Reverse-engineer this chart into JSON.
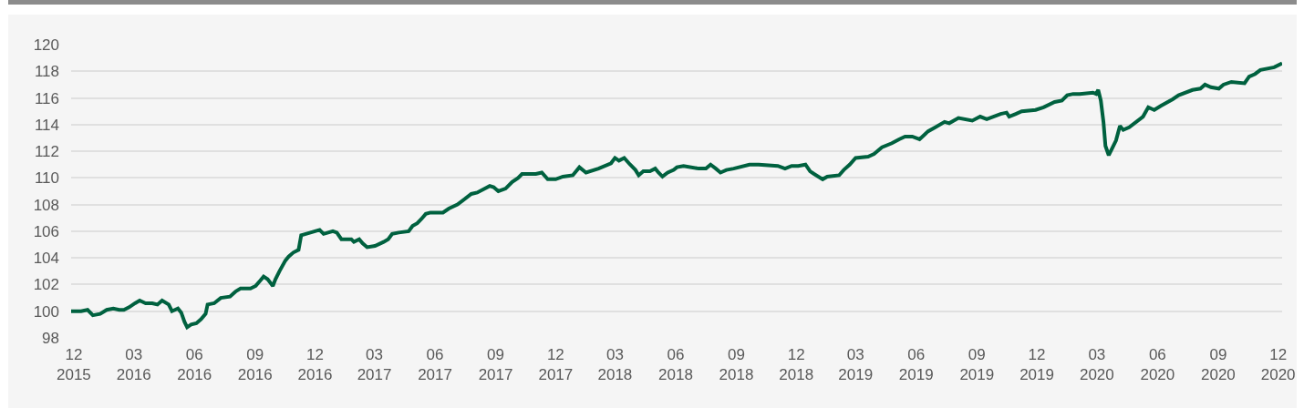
{
  "chart_data": {
    "type": "line",
    "x": [
      "2015-11-27",
      "2015-12-12",
      "2015-12-22",
      "2015-12-30",
      "2016-01-10",
      "2016-01-20",
      "2016-01-30",
      "2016-02-08",
      "2016-02-15",
      "2016-02-23",
      "2016-03-03",
      "2016-03-10",
      "2016-03-19",
      "2016-03-29",
      "2016-04-06",
      "2016-04-13",
      "2016-04-23",
      "2016-04-28",
      "2016-05-07",
      "2016-05-12",
      "2016-05-17",
      "2016-05-21",
      "2016-05-27",
      "2016-06-04",
      "2016-06-11",
      "2016-06-18",
      "2016-06-21",
      "2016-07-01",
      "2016-07-11",
      "2016-07-25",
      "2016-08-03",
      "2016-08-10",
      "2016-08-25",
      "2016-09-02",
      "2016-09-09",
      "2016-09-14",
      "2016-09-20",
      "2016-09-28",
      "2016-10-02",
      "2016-10-08",
      "2016-10-17",
      "2016-10-22",
      "2016-10-29",
      "2016-11-06",
      "2016-11-10",
      "2016-11-17",
      "2016-12-01",
      "2016-12-08",
      "2016-12-14",
      "2016-12-28",
      "2017-01-03",
      "2017-01-10",
      "2017-01-25",
      "2017-01-29",
      "2017-02-06",
      "2017-02-11",
      "2017-02-18",
      "2017-03-02",
      "2017-03-15",
      "2017-03-22",
      "2017-03-28",
      "2017-04-07",
      "2017-04-22",
      "2017-04-28",
      "2017-05-05",
      "2017-05-11",
      "2017-05-18",
      "2017-05-25",
      "2017-06-01",
      "2017-06-13",
      "2017-06-22",
      "2017-07-05",
      "2017-07-26",
      "2017-08-04",
      "2017-08-23",
      "2017-08-29",
      "2017-09-05",
      "2017-09-16",
      "2017-09-26",
      "2017-10-05",
      "2017-10-11",
      "2017-11-01",
      "2017-11-10",
      "2017-11-19",
      "2017-12-01",
      "2017-12-12",
      "2017-12-27",
      "2018-01-06",
      "2018-01-16",
      "2018-02-04",
      "2018-02-23",
      "2018-03-01",
      "2018-03-07",
      "2018-03-15",
      "2018-03-24",
      "2018-04-01",
      "2018-04-06",
      "2018-04-13",
      "2018-04-23",
      "2018-05-01",
      "2018-05-06",
      "2018-05-12",
      "2018-05-20",
      "2018-05-29",
      "2018-06-03",
      "2018-06-13",
      "2018-07-06",
      "2018-07-17",
      "2018-07-24",
      "2018-08-01",
      "2018-08-08",
      "2018-08-17",
      "2018-08-28",
      "2018-09-21",
      "2018-10-05",
      "2018-11-03",
      "2018-11-14",
      "2018-11-24",
      "2018-12-04",
      "2018-12-15",
      "2018-12-22",
      "2018-12-28",
      "2019-01-10",
      "2019-01-17",
      "2019-02-04",
      "2019-02-11",
      "2019-02-20",
      "2019-03-01",
      "2019-03-20",
      "2019-03-29",
      "2019-04-10",
      "2019-04-25",
      "2019-05-06",
      "2019-05-15",
      "2019-05-26",
      "2019-06-06",
      "2019-06-19",
      "2019-06-30",
      "2019-07-14",
      "2019-07-21",
      "2019-08-04",
      "2019-08-25",
      "2019-09-06",
      "2019-09-16",
      "2019-10-07",
      "2019-10-16",
      "2019-10-20",
      "2019-10-30",
      "2019-11-08",
      "2019-11-29",
      "2019-12-11",
      "2019-12-28",
      "2020-01-08",
      "2020-01-16",
      "2020-01-25",
      "2020-02-04",
      "2020-02-24",
      "2020-02-29",
      "2020-03-03",
      "2020-03-07",
      "2020-03-11",
      "2020-03-14",
      "2020-03-19",
      "2020-03-23",
      "2020-03-30",
      "2020-04-05",
      "2020-04-10",
      "2020-04-19",
      "2020-05-10",
      "2020-05-18",
      "2020-05-27",
      "2020-06-06",
      "2020-06-24",
      "2020-07-03",
      "2020-07-24",
      "2020-08-05",
      "2020-08-12",
      "2020-08-21",
      "2020-09-02",
      "2020-09-09",
      "2020-09-21",
      "2020-10-11",
      "2020-10-18",
      "2020-10-27",
      "2020-11-04",
      "2020-11-25",
      "2020-12-07"
    ],
    "series": [
      {
        "color": "#00613f",
        "values": [
          100.0,
          100.0,
          100.1,
          99.7,
          99.8,
          100.1,
          100.2,
          100.1,
          100.1,
          100.3,
          100.6,
          100.8,
          100.6,
          100.6,
          100.5,
          100.8,
          100.5,
          100.0,
          100.2,
          99.9,
          99.2,
          98.8,
          99.0,
          99.1,
          99.4,
          99.8,
          100.5,
          100.6,
          101.0,
          101.1,
          101.5,
          101.7,
          101.7,
          101.9,
          102.3,
          102.6,
          102.4,
          101.9,
          102.4,
          103.0,
          103.8,
          104.1,
          104.4,
          104.6,
          105.7,
          105.8,
          106.0,
          106.1,
          105.8,
          106.0,
          105.9,
          105.4,
          105.4,
          105.2,
          105.4,
          105.1,
          104.8,
          104.9,
          105.2,
          105.4,
          105.8,
          105.9,
          106.0,
          106.4,
          106.6,
          106.9,
          107.3,
          107.4,
          107.4,
          107.4,
          107.7,
          108.0,
          108.8,
          108.9,
          109.4,
          109.3,
          109.0,
          109.2,
          109.7,
          110.0,
          110.3,
          110.3,
          110.4,
          109.9,
          109.9,
          110.1,
          110.2,
          110.8,
          110.4,
          110.7,
          111.1,
          111.5,
          111.3,
          111.5,
          111.0,
          110.6,
          110.2,
          110.5,
          110.5,
          110.7,
          110.4,
          110.1,
          110.4,
          110.6,
          110.8,
          110.9,
          110.7,
          110.7,
          111.0,
          110.7,
          110.4,
          110.6,
          110.7,
          111.0,
          111.0,
          110.9,
          110.7,
          110.9,
          110.9,
          111.0,
          110.5,
          110.3,
          109.9,
          110.1,
          110.2,
          110.6,
          111.0,
          111.5,
          111.6,
          111.8,
          112.3,
          112.6,
          112.9,
          113.1,
          113.1,
          112.9,
          113.5,
          113.8,
          114.2,
          114.1,
          114.5,
          114.3,
          114.6,
          114.4,
          114.8,
          114.9,
          114.6,
          114.8,
          115.0,
          115.1,
          115.3,
          115.7,
          115.8,
          116.2,
          116.3,
          116.3,
          116.4,
          116.3,
          116.6,
          115.8,
          114.2,
          112.4,
          111.7,
          112.1,
          112.8,
          113.9,
          113.6,
          113.8,
          114.6,
          115.3,
          115.1,
          115.4,
          115.9,
          116.2,
          116.6,
          116.7,
          117.0,
          116.8,
          116.7,
          117.0,
          117.2,
          117.1,
          117.6,
          117.8,
          118.1,
          118.3,
          118.6
        ]
      }
    ],
    "xlim": [
      "2015-11-27",
      "2020-12-07"
    ],
    "xticks": [
      {
        "value": "2015-12-01",
        "label": "12\n2015"
      },
      {
        "value": "2016-03-01",
        "label": "03\n2016"
      },
      {
        "value": "2016-06-01",
        "label": "06\n2016"
      },
      {
        "value": "2016-09-01",
        "label": "09\n2016"
      },
      {
        "value": "2016-12-01",
        "label": "12\n2016"
      },
      {
        "value": "2017-03-01",
        "label": "03\n2017"
      },
      {
        "value": "2017-06-01",
        "label": "06\n2017"
      },
      {
        "value": "2017-09-01",
        "label": "09\n2017"
      },
      {
        "value": "2017-12-01",
        "label": "12\n2017"
      },
      {
        "value": "2018-03-01",
        "label": "03\n2018"
      },
      {
        "value": "2018-06-01",
        "label": "06\n2018"
      },
      {
        "value": "2018-09-01",
        "label": "09\n2018"
      },
      {
        "value": "2018-12-01",
        "label": "12\n2018"
      },
      {
        "value": "2019-03-01",
        "label": "03\n2019"
      },
      {
        "value": "2019-06-01",
        "label": "06\n2019"
      },
      {
        "value": "2019-09-01",
        "label": "09\n2019"
      },
      {
        "value": "2019-12-01",
        "label": "12\n2019"
      },
      {
        "value": "2020-03-01",
        "label": "03\n2020"
      },
      {
        "value": "2020-06-01",
        "label": "06\n2020"
      },
      {
        "value": "2020-09-01",
        "label": "09\n2020"
      },
      {
        "value": "2020-12-01",
        "label": "12\n2020"
      }
    ],
    "ylim": [
      98,
      120
    ],
    "yticks": [
      98,
      100,
      102,
      104,
      106,
      108,
      110,
      112,
      114,
      116,
      118,
      120
    ],
    "grid": "y"
  }
}
